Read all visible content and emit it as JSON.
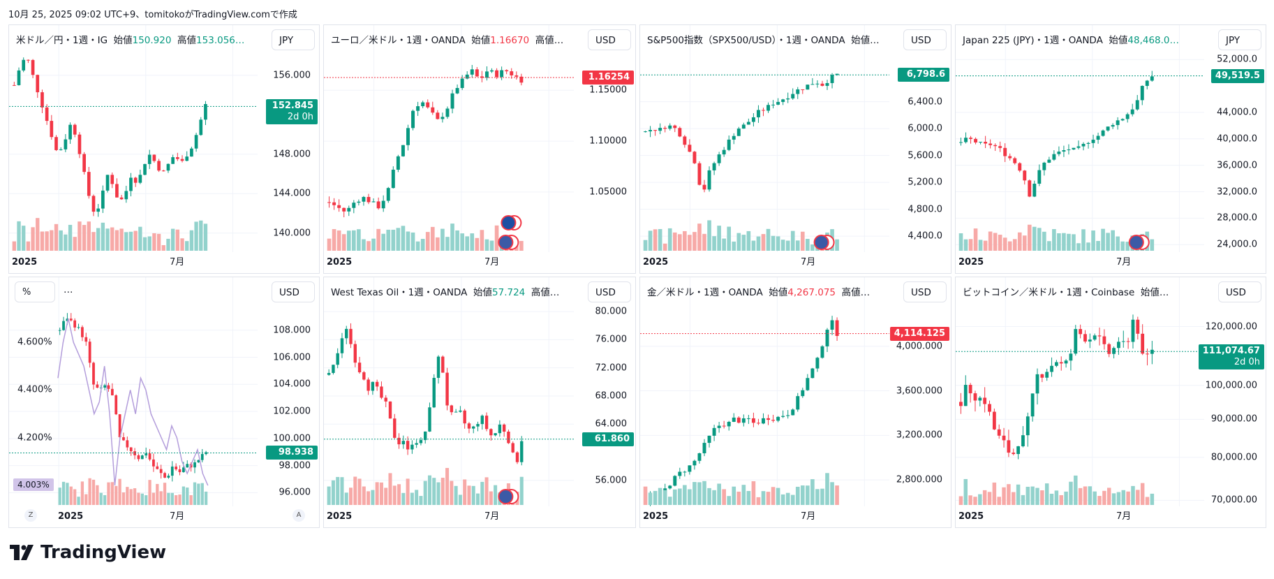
{
  "header": {
    "created": "10月 25, 2025 09:02 UTC+9、tomitokoがTradingView.comで作成"
  },
  "logo": {
    "text": "TradingView"
  },
  "colors": {
    "up": "#089981",
    "down": "#f23645",
    "vol_up": "#92d2cc",
    "vol_down": "#f7a9a7"
  },
  "panels": [
    {
      "title": [
        {
          "t": "米ドル／円・1週・IG  始値"
        },
        {
          "t": "150.920",
          "c": "#089981"
        },
        {
          "t": "  高値"
        },
        {
          "t": "153.056…",
          "c": "#089981"
        }
      ],
      "currency": "JPY",
      "scale": "linear",
      "yrange": [
        138.5,
        158.6
      ],
      "ylabels": [
        "156.000",
        "148.000",
        "144.000",
        "140.000"
      ],
      "price": {
        "value": 152.845,
        "text": "152.845",
        "sub": "2d 0h",
        "color": "#089981"
      },
      "xlabels": [
        "2025",
        "7月"
      ],
      "events": 0,
      "trend": [
        155,
        157,
        158,
        156,
        154,
        152,
        150,
        148,
        149,
        151,
        150,
        147,
        144,
        142,
        143,
        146,
        145,
        143,
        144,
        146,
        145,
        147,
        148,
        147,
        146,
        147,
        148,
        147,
        148,
        149,
        151,
        153
      ]
    },
    {
      "title": [
        {
          "t": "ユーロ／米ドル・1週・OANDA  始値"
        },
        {
          "t": "1.16670",
          "c": "#f23645"
        },
        {
          "t": "  高値…"
        }
      ],
      "currency": "USD",
      "scale": "linear",
      "yrange": [
        0.995,
        1.19
      ],
      "ylabels": [
        "1.15000",
        "1.10000",
        "1.05000"
      ],
      "price": {
        "value": 1.16254,
        "text": "1.16254",
        "color": "#f23645"
      },
      "xlabels": [
        "2025",
        "7月"
      ],
      "events": 2,
      "trend": [
        1.04,
        1.035,
        1.03,
        1.04,
        1.045,
        1.04,
        1.035,
        1.05,
        1.08,
        1.1,
        1.13,
        1.14,
        1.13,
        1.12,
        1.13,
        1.15,
        1.16,
        1.17,
        1.16,
        1.17,
        1.165,
        1.17,
        1.165,
        1.16
      ]
    },
    {
      "title": [
        {
          "t": "S&P500指数（SPX500/USD）・1週・OANDA  始値…"
        }
      ],
      "currency": "USD",
      "scale": "linear",
      "yrange": [
        4225,
        7175
      ],
      "ylabels": [
        "6,400.0",
        "6,000.0",
        "5,600.0",
        "5,200.0",
        "4,800.0",
        "4,400.0"
      ],
      "price": {
        "value": 6798.6,
        "text": "6,798.6",
        "color": "#089981"
      },
      "xlabels": [
        "2025",
        "7月"
      ],
      "events": 1,
      "trend": [
        5950,
        6000,
        5980,
        6050,
        6020,
        5900,
        5700,
        5500,
        5000,
        5350,
        5550,
        5700,
        5850,
        6000,
        6050,
        6150,
        6250,
        6300,
        6380,
        6420,
        6480,
        6550,
        6600,
        6650,
        6700,
        6650,
        6750,
        6800
      ]
    },
    {
      "title": [
        {
          "t": "Japan 225 (JPY)・1週・OANDA  始値"
        },
        {
          "t": "48,468.0…",
          "c": "#089981"
        }
      ],
      "currency": "JPY",
      "scale": "linear",
      "yrange": [
        23500,
        53500
      ],
      "ylabels": [
        "52,000.0",
        "44,000.0",
        "40,000.0",
        "36,000.0",
        "32,000.0",
        "28,000.0",
        "24,000.0"
      ],
      "price": {
        "value": 49519.5,
        "text": "49,519.5",
        "color": "#089981"
      },
      "xlabels": [
        "2025",
        "7月"
      ],
      "events": 1,
      "trend": [
        39500,
        40000,
        39500,
        39000,
        39200,
        38500,
        37500,
        36500,
        35000,
        31500,
        34500,
        36500,
        37500,
        38000,
        38500,
        38200,
        39000,
        40000,
        40500,
        41500,
        42500,
        43000,
        44000,
        45500,
        48500,
        49500
      ]
    },
    {
      "title": [
        {
          "t": "…"
        }
      ],
      "pct_label": "%",
      "currency": "USD",
      "scale": "linear",
      "yrange": [
        95.3,
        110.1
      ],
      "ylabels": [
        "108.000",
        "106.000",
        "104.000",
        "102.000",
        "100.000",
        "98.000",
        "96.000"
      ],
      "left_axis": {
        "yrange": [
          3.93,
          4.77
        ],
        "labels": [
          "4.600%",
          "4.400%",
          "4.200%"
        ],
        "badge": {
          "value": 4.003,
          "text": "4.003%"
        }
      },
      "yield_line": [
        4.45,
        4.6,
        4.7,
        4.6,
        4.55,
        4.5,
        4.4,
        4.3,
        4.35,
        4.5,
        4.3,
        4.0,
        4.2,
        4.3,
        4.4,
        4.3,
        4.45,
        4.4,
        4.3,
        4.25,
        4.2,
        4.15,
        4.25,
        4.2,
        4.1,
        4.05,
        4.1,
        4.15,
        4.05,
        4.0
      ],
      "price": {
        "value": 98.938,
        "text": "98.938",
        "color": "#089981"
      },
      "xlabels": [
        "2025",
        "7月"
      ],
      "scale_buttons": [
        "Z",
        "A"
      ],
      "events": 0,
      "trend": [
        108,
        109,
        108.5,
        108,
        107,
        104,
        103.5,
        104,
        103,
        100,
        99.5,
        99,
        98.5,
        99,
        98,
        97.5,
        97,
        98,
        97.5,
        98,
        98,
        98.5,
        99
      ]
    },
    {
      "title": [
        {
          "t": "West Texas Oil・1週・OANDA  始値"
        },
        {
          "t": "57.724",
          "c": "#089981"
        },
        {
          "t": "  高値…"
        }
      ],
      "currency": "USD",
      "scale": "linear",
      "yrange": [
        52.9,
        81.4
      ],
      "ylabels": [
        "80.000",
        "76.000",
        "72.000",
        "68.000",
        "64.000",
        "56.000"
      ],
      "price": {
        "value": 61.86,
        "text": "61.860",
        "color": "#089981"
      },
      "xlabels": [
        "2025",
        "7月"
      ],
      "events": 1,
      "trend": [
        71,
        73,
        75,
        78,
        75,
        72,
        71,
        69,
        70,
        68,
        67,
        64,
        61,
        62,
        60,
        62,
        61,
        63,
        67,
        74,
        72,
        66,
        65,
        66,
        64,
        63,
        64,
        65,
        63,
        62,
        64,
        63,
        61,
        58,
        61.8
      ]
    },
    {
      "title": [
        {
          "t": "金／米ドル・1週・OANDA  始値"
        },
        {
          "t": "4,267.075",
          "c": "#f23645"
        },
        {
          "t": "  高値…"
        }
      ],
      "currency": "USD",
      "scale": "linear",
      "yrange": [
        2600,
        4400
      ],
      "ylabels": [
        "4,000.000",
        "3,600.000",
        "3,200.000",
        "2,800.000"
      ],
      "price": {
        "value": 4114.125,
        "text": "4,114.125",
        "color": "#f23645"
      },
      "xlabels": [
        "2025",
        "7月"
      ],
      "events": 0,
      "trend": [
        2630,
        2650,
        2680,
        2720,
        2800,
        2860,
        2900,
        2950,
        3050,
        3150,
        3250,
        3300,
        3300,
        3350,
        3320,
        3350,
        3300,
        3340,
        3360,
        3350,
        3380,
        3400,
        3500,
        3620,
        3750,
        3850,
        4050,
        4250,
        4114
      ]
    },
    {
      "title": [
        {
          "t": "ビットコイン／米ドル・1週・Coinbase  始値…"
        }
      ],
      "currency": "USD",
      "scale": "log",
      "yrange": [
        69600,
        129600
      ],
      "ylabels": [
        "120,000.00",
        "100,000.00",
        "90,000.00",
        "80,000.00",
        "70,000.00"
      ],
      "price": {
        "value": 111074.67,
        "text": "111,074.67",
        "sub": "2d 0h",
        "color": "#089981"
      },
      "xlabels": [
        "2025",
        "7月"
      ],
      "events": 0,
      "trend": [
        95000,
        100000,
        97000,
        96000,
        95000,
        88000,
        85000,
        83000,
        80000,
        84000,
        85000,
        94000,
        103000,
        104000,
        106000,
        108000,
        106000,
        108000,
        118000,
        117000,
        115000,
        118000,
        114000,
        110000,
        112000,
        116000,
        110000,
        124000,
        115000,
        108000,
        111000
      ]
    }
  ]
}
